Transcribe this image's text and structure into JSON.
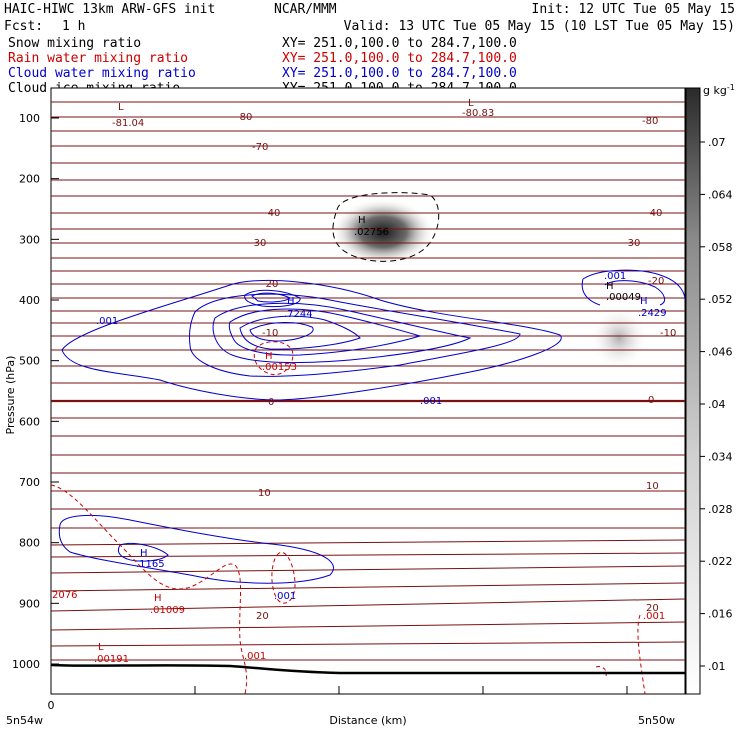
{
  "header": {
    "title": "HAIC-HIWC 13km ARW-GFS init",
    "org": "NCAR/MMM",
    "init": "Init: 12 UTC Tue 05 May 15",
    "fcst_label": "Fcst:",
    "fcst_value": "1 h",
    "valid": "Valid: 13 UTC Tue 05 May 15 (10 LST Tue 05 May 15)"
  },
  "fields": [
    {
      "name": "Snow mixing ratio",
      "xsec": "XY= 251.0,100.0 to 284.7,100.0",
      "color": "#000000"
    },
    {
      "name": "Rain water mixing ratio",
      "xsec": "XY= 251.0,100.0 to 284.7,100.0",
      "color": "#cc0000"
    },
    {
      "name": "Cloud water mixing ratio",
      "xsec": "XY= 251.0,100.0 to 284.7,100.0",
      "color": "#0000cc"
    },
    {
      "name": "Cloud ice mixing ratio",
      "xsec": "XY= 251.0,100.0 to 284.7,100.0",
      "color": "#000000"
    }
  ],
  "axes": {
    "ylabel": "Pressure (hPa)",
    "xlabel": "Distance (km)",
    "y_ticks": [
      "100",
      "200",
      "300",
      "400",
      "500",
      "600",
      "700",
      "800",
      "900",
      "1000"
    ],
    "x_zero": "0",
    "x_left": "5n54w",
    "x_right": "5n50w"
  },
  "colorbar": {
    "unit": "g kg",
    "unit_exp": "-1",
    "ticks": [
      ".07",
      ".064",
      ".058",
      ".052",
      ".046",
      ".04",
      ".034",
      ".028",
      ".022",
      ".016",
      ".01"
    ]
  },
  "chart_data": {
    "type": "heatmap",
    "xlabel": "Distance (km)",
    "ylabel": "Pressure (hPa)",
    "ylim": [
      1050,
      50
    ],
    "temperature_isotherms": {
      "color": "#7a1010",
      "levels": [
        {
          "label": "-80",
          "p": 108
        },
        {
          "label": "-70",
          "p": 148
        },
        {
          "label": "-40",
          "p": 258
        },
        {
          "label": "-30",
          "p": 305
        },
        {
          "label": "-20",
          "p": 375
        },
        {
          "label": "-10",
          "p": 450
        },
        {
          "label": "0",
          "p": 565
        },
        {
          "label": "10",
          "p": 688
        },
        {
          "label": "20",
          "p": 918
        }
      ],
      "extrema": [
        {
          "label": "L",
          "value": "-81.04",
          "x": 0.11,
          "p": 97
        },
        {
          "label": "L",
          "value": "-80.83",
          "x": 0.66,
          "p": 97
        }
      ]
    },
    "snow_mixing_ratio_max": {
      "label": "H",
      "value": ".02756",
      "x": 0.5,
      "p": 290
    },
    "cloud_ice_maxima": [
      {
        "label": "H",
        "value": ".00049",
        "x": 0.88,
        "p": 400
      }
    ],
    "cloud_water_contours": {
      "color": "#0000cc",
      "labels": [
        ".001",
        ".001",
        ".001",
        ".001"
      ],
      "maxima": [
        {
          "label": "H",
          "value": ".7244",
          "x": 0.37,
          "p": 410
        },
        {
          "label": "H",
          "value": ".2429",
          "x": 0.93,
          "p": 420
        },
        {
          "label": "H",
          "value": ".1165",
          "x": 0.14,
          "p": 835
        }
      ]
    },
    "rain_water_contours": {
      "color": "#cc0000",
      "labels": [
        ".001",
        ".001",
        "2076"
      ],
      "maxima": [
        {
          "label": "H",
          "value": ".00153",
          "x": 0.36,
          "p": 490
        },
        {
          "label": "H",
          "value": ".01009",
          "x": 0.17,
          "p": 898
        },
        {
          "label": "L",
          "value": ".00191",
          "x": 0.08,
          "p": 1000
        }
      ]
    },
    "colorbar_range": [
      0.01,
      0.07
    ]
  }
}
